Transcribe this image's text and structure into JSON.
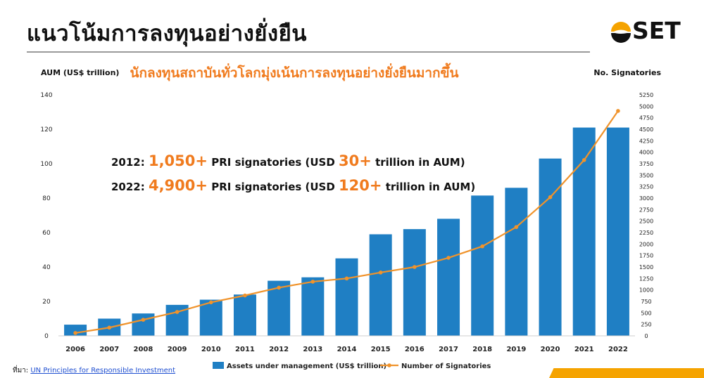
{
  "header": {
    "title": "แนวโน้มการลงทุนอย่างยั่งยืน",
    "logo_text": "SET"
  },
  "source": {
    "prefix": "ที่มา: ",
    "link_text": "UN Principles for Responsible Investment"
  },
  "colors": {
    "bar": "#1f7fc4",
    "line": "#f0932b",
    "highlight": "#f07b1e",
    "logo_gold": "#f5a300"
  },
  "chart_data": {
    "type": "bar",
    "subtitle": "นักลงทุนสถาบันทั่วโลกมุ่งเน้นการลงทุนอย่างยั่งยืนมากขึ้น",
    "ylabel": "AUM (US$ trillion)",
    "y2label": "No. Signatories",
    "categories": [
      "2006",
      "2007",
      "2008",
      "2009",
      "2010",
      "2011",
      "2012",
      "2013",
      "2014",
      "2015",
      "2016",
      "2017",
      "2018",
      "2019",
      "2020",
      "2021",
      "2022"
    ],
    "ylim": [
      0,
      140
    ],
    "yticks": [
      0,
      20,
      40,
      60,
      80,
      100,
      120,
      140
    ],
    "y2lim": [
      0,
      5250
    ],
    "y2ticks": [
      0,
      250,
      500,
      750,
      1000,
      1250,
      1500,
      1750,
      2000,
      2250,
      2500,
      2750,
      3000,
      3250,
      3500,
      3750,
      4000,
      4250,
      4500,
      4750,
      5000,
      5250
    ],
    "series": [
      {
        "name": "Assets under management (US$ trillion)",
        "kind": "bar",
        "axis": "left",
        "values": [
          6.5,
          10,
          13,
          18,
          21,
          24,
          32,
          34,
          45,
          59,
          62,
          68,
          81.5,
          86,
          103,
          121,
          121
        ]
      },
      {
        "name": "Number of Signatories",
        "kind": "line",
        "axis": "right",
        "values": [
          63,
          180,
          350,
          520,
          730,
          880,
          1050,
          1180,
          1250,
          1380,
          1500,
          1700,
          1950,
          2370,
          3020,
          3830,
          4900
        ]
      }
    ],
    "annotations": [
      {
        "prefix": "2012: ",
        "signatories": "1,050+",
        "mid": " PRI signatories (USD ",
        "aum": "30+",
        "suffix": " trillion in AUM)"
      },
      {
        "prefix": "2022: ",
        "signatories": "4,900+",
        "mid": " PRI signatories (USD ",
        "aum": "120+",
        "suffix": " trillion in AUM)"
      }
    ],
    "legend_position": "bottom",
    "grid": false
  }
}
